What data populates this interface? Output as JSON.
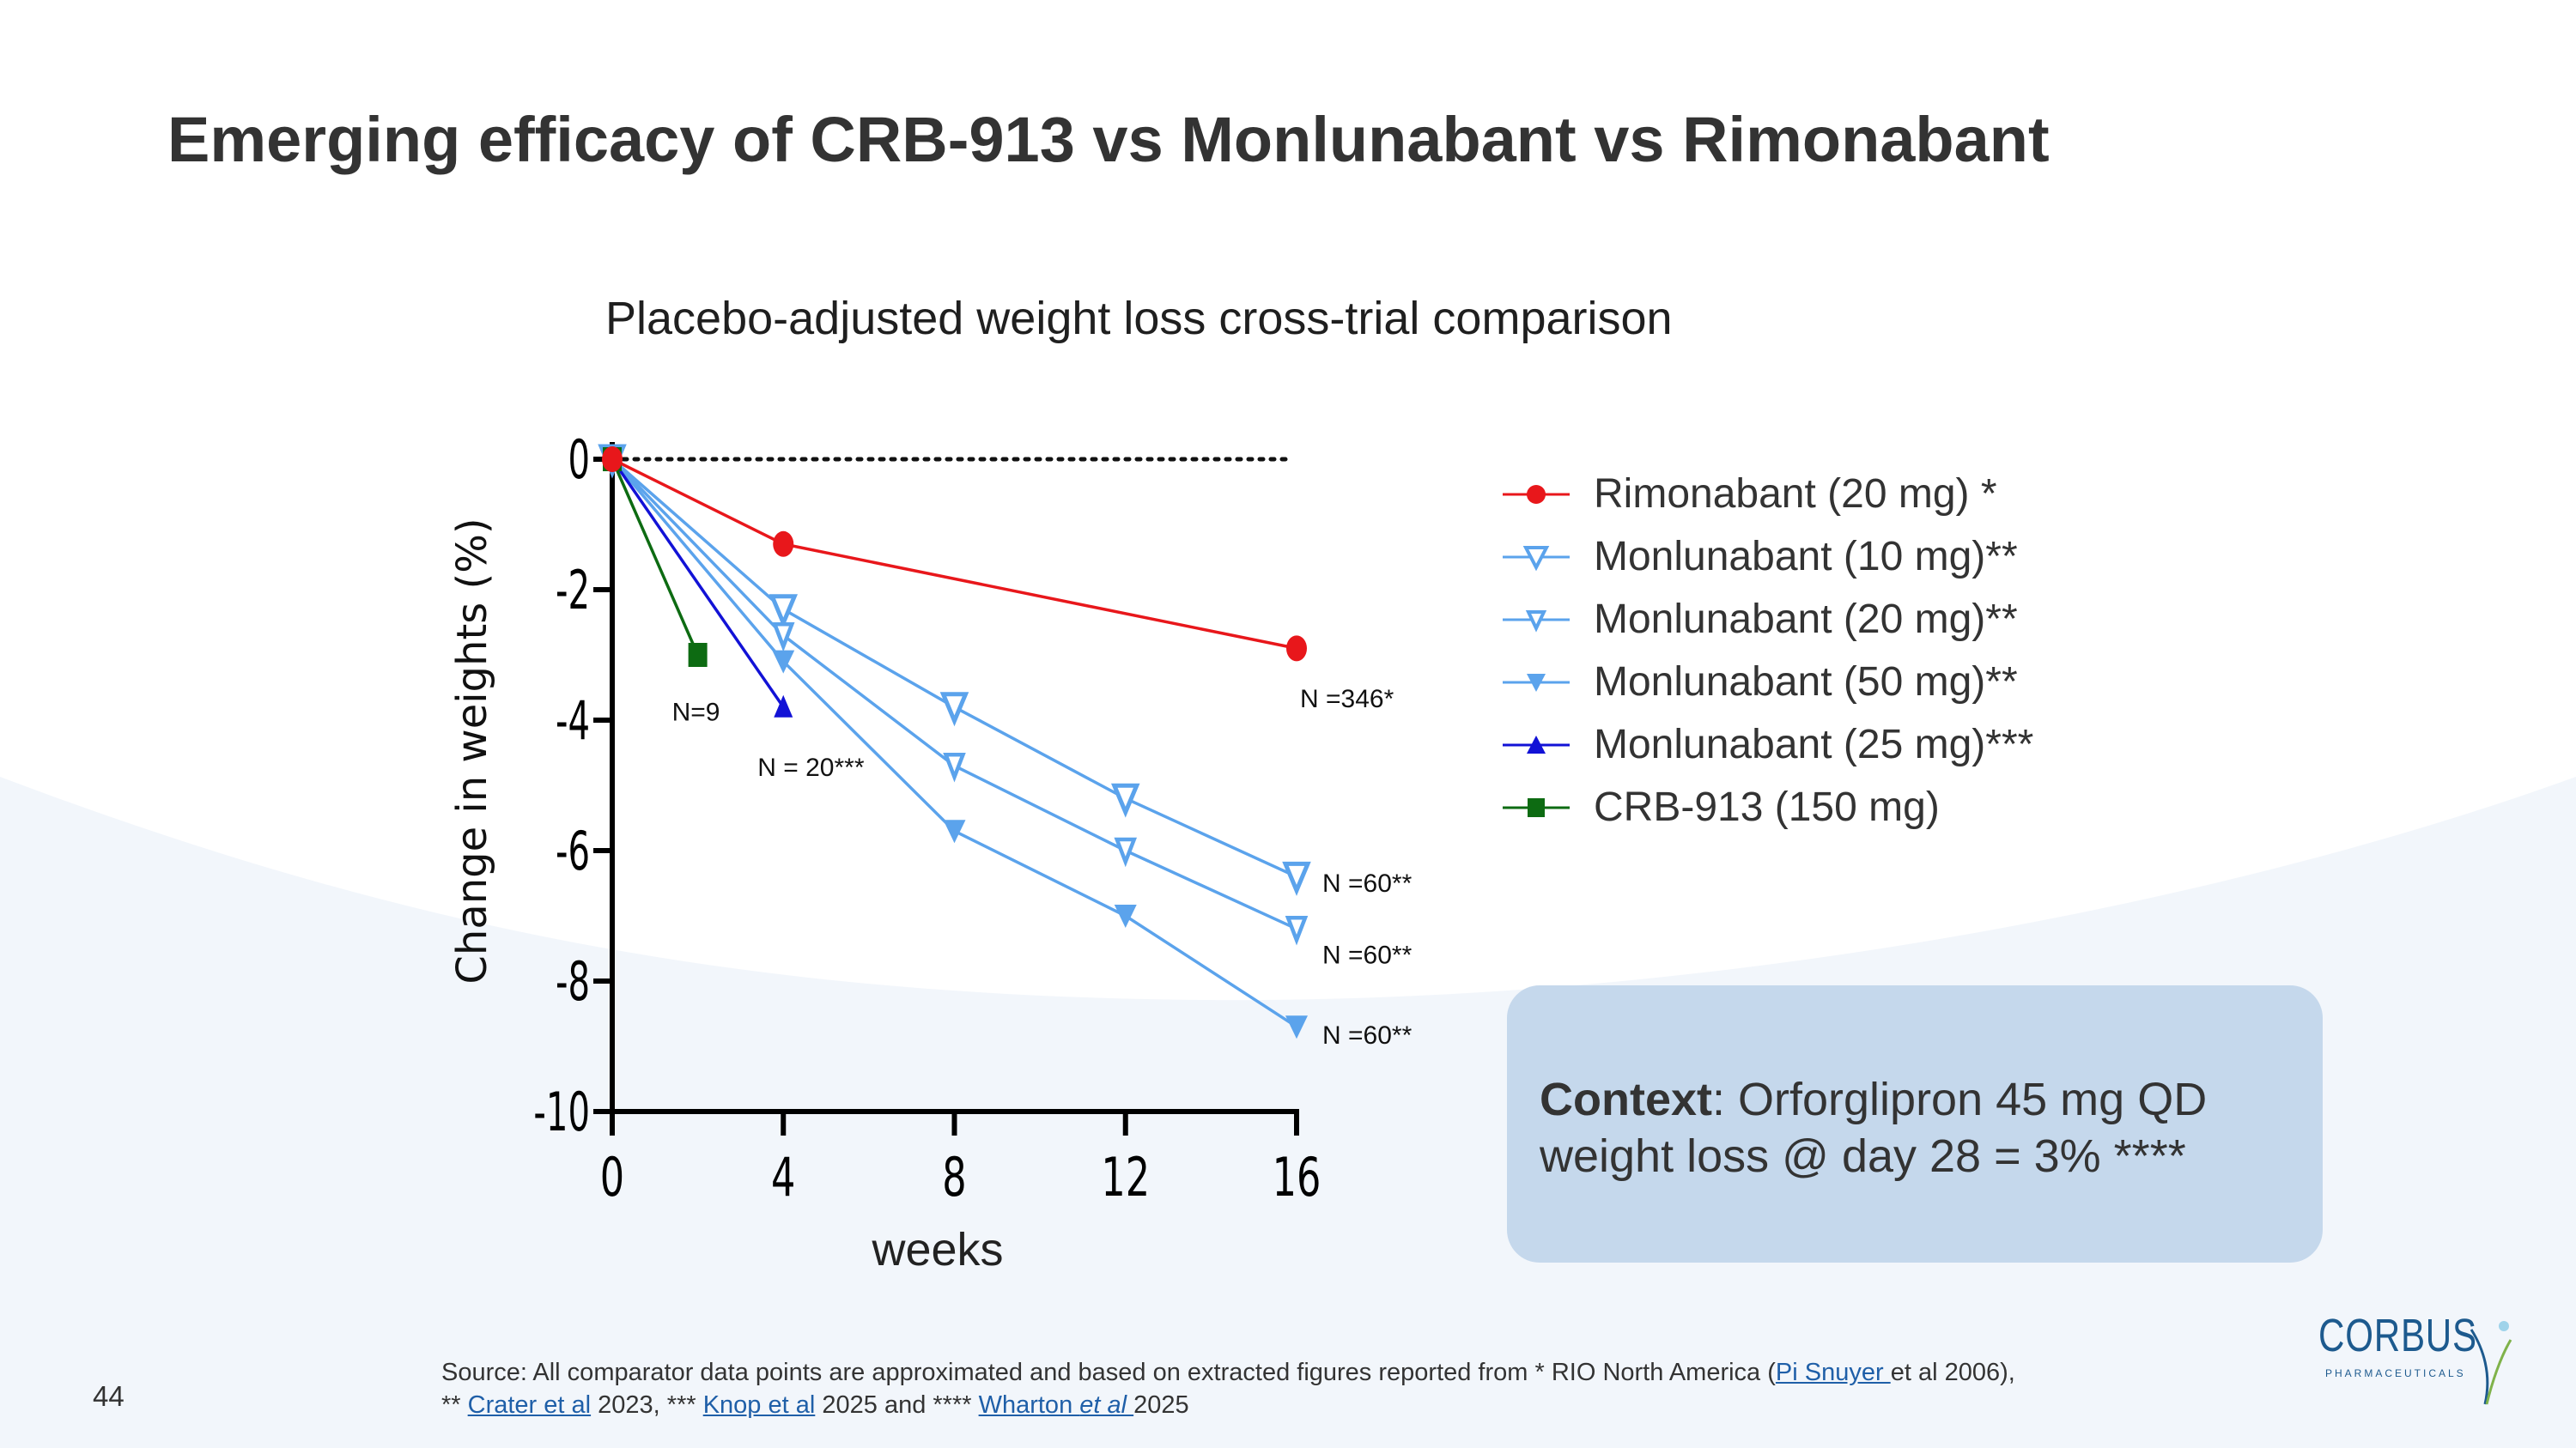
{
  "slide": {
    "title": "Emerging efficacy of CRB-913 vs Monlunabant vs Rimonabant",
    "page_number": "44"
  },
  "chart_data": {
    "type": "line",
    "title": "Placebo-adjusted weight loss cross-trial comparison",
    "xlabel": "weeks",
    "ylabel": "Change in weights (%)",
    "xlim": [
      0,
      16
    ],
    "ylim": [
      -10,
      0
    ],
    "xticks": [
      0,
      4,
      8,
      12,
      16
    ],
    "yticks": [
      0,
      -2,
      -4,
      -6,
      -8,
      -10
    ],
    "reference_line_y": 0,
    "series": [
      {
        "name": "Rimonabant (20 mg) *",
        "color": "#e8171b",
        "marker": "circle",
        "points": [
          [
            0,
            0
          ],
          [
            4,
            -1.3
          ],
          [
            16,
            -2.9
          ]
        ]
      },
      {
        "name": "Monlunabant (10 mg)**",
        "color": "#5ba3ec",
        "marker": "triangle-down-open",
        "points": [
          [
            0,
            0
          ],
          [
            4,
            -2.3
          ],
          [
            8,
            -3.8
          ],
          [
            12,
            -5.2
          ],
          [
            16,
            -6.4
          ]
        ]
      },
      {
        "name": "Monlunabant (20 mg)**",
        "color": "#5ba3ec",
        "marker": "triangle-down-open-small",
        "points": [
          [
            0,
            0
          ],
          [
            4,
            -2.7
          ],
          [
            8,
            -4.7
          ],
          [
            12,
            -6.0
          ],
          [
            16,
            -7.2
          ]
        ]
      },
      {
        "name": "Monlunabant (50 mg)**",
        "color": "#5ba3ec",
        "marker": "triangle-down-filled",
        "points": [
          [
            0,
            0
          ],
          [
            4,
            -3.1
          ],
          [
            8,
            -5.7
          ],
          [
            12,
            -7.0
          ],
          [
            16,
            -8.7
          ]
        ]
      },
      {
        "name": "Monlunabant (25 mg)***",
        "color": "#1212d6",
        "marker": "triangle-up-filled",
        "points": [
          [
            0,
            0
          ],
          [
            4,
            -3.8
          ]
        ]
      },
      {
        "name": "CRB-913 (150 mg)",
        "color": "#0d6b12",
        "marker": "square",
        "points": [
          [
            0,
            0
          ],
          [
            2,
            -3.0
          ]
        ]
      }
    ],
    "annotations": [
      {
        "text": "N=9",
        "x": 2,
        "y": -3.9
      },
      {
        "text": "N = 20***",
        "x": 4,
        "y": -4.7
      },
      {
        "text": "N =346*",
        "x": 16,
        "y": -3.7
      },
      {
        "text": "N =60**",
        "x": 16,
        "y": -6.5
      },
      {
        "text": "N =60**",
        "x": 16,
        "y": -7.6
      },
      {
        "text": "N =60**",
        "x": 16,
        "y": -8.8
      }
    ]
  },
  "context": {
    "label": "Context",
    "text": ": Orforglipron 45 mg QD weight loss @ day 28 = 3% ****"
  },
  "footnote": {
    "line1_prefix": "Source: All comparator data points are approximated and based on extracted figures reported from * RIO North America (",
    "pi_link": "Pi Snuyer ",
    "line1_suffix": "et al 2006),",
    "crater_prefix": "** ",
    "crater_link": "Crater et al",
    "crater_suffix": " 2023,   *** ",
    "knop_link": "Knop et al",
    "knop_suffix": " 2025 and **** ",
    "wharton_link_a": "Wharton ",
    "wharton_link_b": "et al ",
    "wharton_suffix": "2025"
  },
  "logo": {
    "name": "CORBUS",
    "subtitle": "PHARMACEUTICALS"
  }
}
